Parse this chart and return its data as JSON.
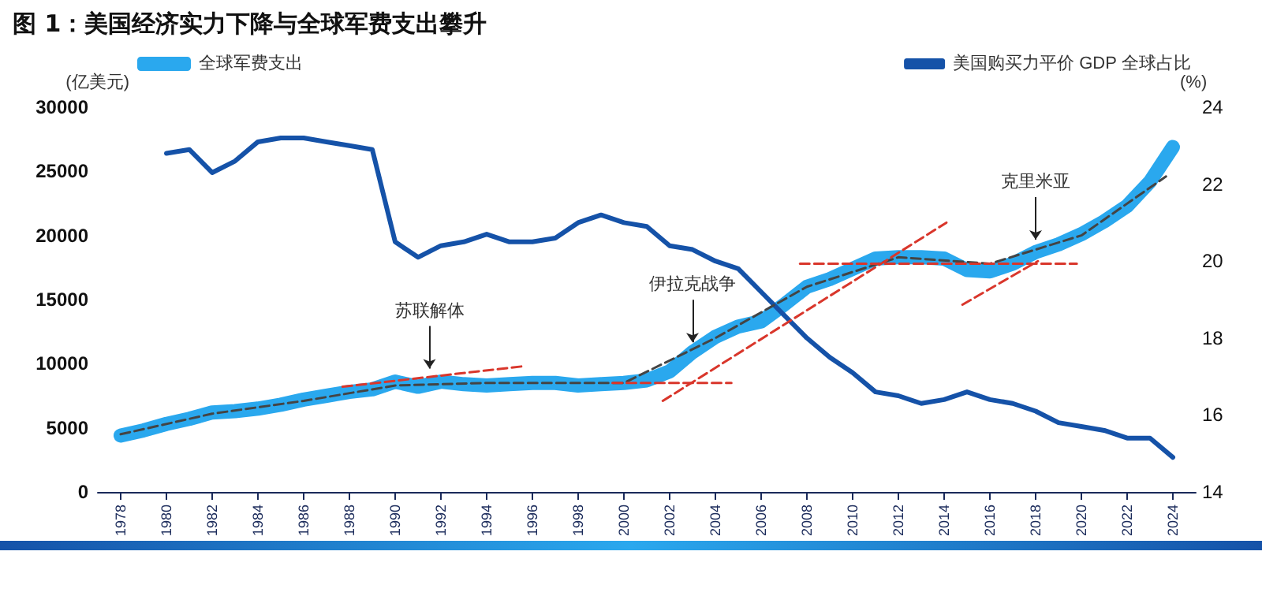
{
  "chart_data": {
    "type": "line",
    "title": "图 1：美国经济实力下降与全球军费支出攀升",
    "ylabel": "(亿美元)",
    "y2label": "(%)",
    "legend": "top",
    "marker": "none",
    "line_style": "solid",
    "x": [
      1978,
      1979,
      1980,
      1981,
      1982,
      1983,
      1984,
      1985,
      1986,
      1987,
      1988,
      1989,
      1990,
      1991,
      1992,
      1993,
      1994,
      1995,
      1996,
      1997,
      1998,
      1999,
      2000,
      2001,
      2002,
      2003,
      2004,
      2005,
      2006,
      2007,
      2008,
      2009,
      2010,
      2011,
      2012,
      2013,
      2014,
      2015,
      2016,
      2017,
      2018,
      2019,
      2020,
      2021,
      2022,
      2023,
      2024
    ],
    "series": [
      {
        "name": "全球军费支出",
        "color": "#2aa8ee",
        "values": [
          4400,
          4800,
          5300,
          5700,
          6200,
          6300,
          6500,
          6800,
          7200,
          7500,
          7800,
          8000,
          8600,
          8200,
          8600,
          8400,
          8300,
          8400,
          8500,
          8500,
          8300,
          8400,
          8500,
          8700,
          9400,
          10900,
          12100,
          12900,
          13300,
          14600,
          16000,
          16600,
          17400,
          18200,
          18300,
          18300,
          18200,
          17300,
          17200,
          17800,
          18700,
          19300,
          20100,
          21100,
          22300,
          24200,
          26900
        ]
      },
      {
        "name": "美国购买力平价 GDP 全球占比",
        "color": "#1552a8",
        "axis": "y2",
        "values": [
          null,
          null,
          22.8,
          22.9,
          22.3,
          22.6,
          23.1,
          23.2,
          23.2,
          23.1,
          23.0,
          22.9,
          20.5,
          20.1,
          20.4,
          20.5,
          20.7,
          20.5,
          20.5,
          20.6,
          21.0,
          21.2,
          21.0,
          20.9,
          20.4,
          20.3,
          20.0,
          19.8,
          19.2,
          18.6,
          18.0,
          17.5,
          17.1,
          16.6,
          16.5,
          16.3,
          16.4,
          16.6,
          16.4,
          16.3,
          16.1,
          15.8,
          15.7,
          15.6,
          15.4,
          15.4,
          14.9
        ]
      },
      {
        "color": "#444444",
        "line_style": "dashed",
        "x": [
          1978,
          1982,
          1986,
          1990,
          1994,
          2000,
          2004,
          2008,
          2012,
          2016,
          2020,
          2023.7
        ],
        "values": [
          4500,
          6100,
          7100,
          8300,
          8500,
          8500,
          12000,
          16000,
          18300,
          17800,
          20000,
          24600
        ]
      },
      {
        "color": "#d9362b",
        "line_style": "dashed",
        "x": [
          1987.7,
          1995.6
        ],
        "values": [
          8200,
          9800
        ]
      },
      {
        "color": "#d9362b",
        "line_style": "dashed",
        "x": [
          1999.5,
          2004.7
        ],
        "values": [
          8500,
          8500
        ]
      },
      {
        "color": "#d9362b",
        "line_style": "dashed",
        "x": [
          2001.7,
          2014.1
        ],
        "values": [
          7100,
          21000
        ]
      },
      {
        "color": "#d9362b",
        "line_style": "dashed",
        "x": [
          2007.7,
          2019.8
        ],
        "values": [
          17800,
          17800
        ]
      },
      {
        "color": "#d9362b",
        "line_style": "dashed",
        "x": [
          2014.8,
          2018.1
        ],
        "values": [
          14600,
          18000
        ]
      }
    ],
    "annotations": [
      {
        "text": "苏联解体",
        "x": 1991.5,
        "y": 9250
      },
      {
        "text": "伊拉克战争",
        "x": 2003,
        "y": 11300
      },
      {
        "text": "克里米亚",
        "x": 2018,
        "y": 19300
      }
    ],
    "xlim": [
      1977,
      2025
    ],
    "xticks": [
      1978,
      1980,
      1982,
      1984,
      1986,
      1988,
      1990,
      1992,
      1994,
      1996,
      1998,
      2000,
      2002,
      2004,
      2006,
      2008,
      2010,
      2012,
      2014,
      2016,
      2018,
      2020,
      2022,
      2024
    ],
    "ylim": [
      0,
      30000
    ],
    "yticks": [
      0,
      5000,
      10000,
      15000,
      20000,
      25000,
      30000
    ],
    "y2lim": [
      14,
      24
    ],
    "y2ticks": [
      14,
      16,
      18,
      20,
      22,
      24
    ]
  }
}
